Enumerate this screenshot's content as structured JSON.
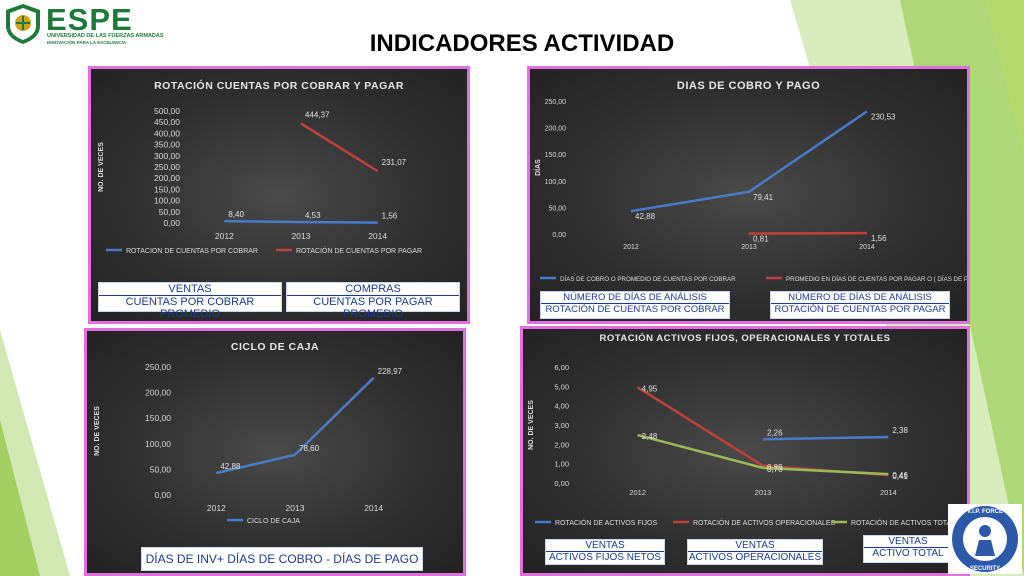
{
  "header": {
    "logo_name": "ESPE",
    "logo_sub1": "UNIVERSIDAD DE LAS FUERZAS ARMADAS",
    "logo_sub2": "INNOVACIÓN PARA LA EXCELENCIA",
    "title": "INDICADORES ACTIVIDAD"
  },
  "chart_data": [
    {
      "type": "line",
      "title": "ROTACIÓN CUENTAS POR COBRAR Y PAGAR",
      "ylabel": "NO. DE VECES",
      "xlabel": "",
      "categories": [
        "2012",
        "2013",
        "2014"
      ],
      "yticks": [
        "0,00",
        "50,00",
        "100,00",
        "150,00",
        "200,00",
        "250,00",
        "300,00",
        "350,00",
        "400,00",
        "450,00",
        "500,00"
      ],
      "ylim": [
        0,
        500
      ],
      "series": [
        {
          "name": "ROTACION DE CUENTAS POR COBRAR",
          "color": "#4a7bc8",
          "values": [
            8.4,
            4.53,
            1.56
          ],
          "labels": [
            "8,40",
            "4,53",
            "1,56"
          ]
        },
        {
          "name": "ROTACIÓN DE CUENTAS POR PAGAR",
          "color": "#c0403c",
          "values": [
            null,
            444.37,
            231.07
          ],
          "labels": [
            "",
            "444,37",
            "231,07"
          ]
        }
      ],
      "legend": "bottom",
      "grid": false
    },
    {
      "type": "line",
      "title": "DIAS DE COBRO Y PAGO",
      "ylabel": "DÍAS",
      "xlabel": "",
      "categories": [
        "2012",
        "2013",
        "2014"
      ],
      "yticks": [
        "0,00",
        "50,00",
        "100,00",
        "150,00",
        "200,00",
        "250,00"
      ],
      "ylim": [
        0,
        250
      ],
      "series": [
        {
          "name": "DÍAS DE COBRO O PROMEDIO DE CUENTAS POR COBRAR",
          "color": "#4a7bc8",
          "values": [
            42.88,
            79.41,
            230.53
          ],
          "labels": [
            "42,88",
            "79,41",
            "230,53"
          ]
        },
        {
          "name": "PROMEDIO EN DÍAS DE CUENTAS POR PAGAR O ( DÍAS DE PAGO )",
          "color": "#c0403c",
          "values": [
            null,
            0.81,
            1.56
          ],
          "labels": [
            "",
            "0,81",
            "1,56"
          ]
        }
      ],
      "legend": "bottom",
      "grid": false
    },
    {
      "type": "line",
      "title": "CICLO DE CAJA",
      "ylabel": "NO. DE VECES",
      "xlabel": "",
      "categories": [
        "2012",
        "2013",
        "2014"
      ],
      "yticks": [
        "0,00",
        "50,00",
        "100,00",
        "150,00",
        "200,00",
        "250,00"
      ],
      "ylim": [
        0,
        250
      ],
      "series": [
        {
          "name": "CICLO DE CAJA",
          "color": "#4a7bc8",
          "values": [
            42.88,
            78.6,
            228.97
          ],
          "labels": [
            "42,88",
            "78,60",
            "228,97"
          ]
        }
      ],
      "legend": "bottom",
      "grid": false
    },
    {
      "type": "line",
      "title": "ROTACIÓN ACTIVOS FIJOS, OPERACIONALES Y TOTALES",
      "ylabel": "NO. DE VECES",
      "xlabel": "",
      "categories": [
        "2012",
        "2013",
        "2014"
      ],
      "yticks": [
        "0,00",
        "1,00",
        "2,00",
        "3,00",
        "4,00",
        "5,00",
        "6,00"
      ],
      "ylim": [
        0,
        6
      ],
      "series": [
        {
          "name": "ROTACIÓN DE ACTIVOS FIJOS",
          "color": "#4a7bc8",
          "values": [
            null,
            2.26,
            2.38
          ],
          "labels": [
            "",
            "2,26",
            "2,38"
          ]
        },
        {
          "name": "ROTACIÓN DE ACTIVOS OPERACIONALES",
          "color": "#c0403c",
          "values": [
            4.95,
            0.89,
            0.41
          ],
          "labels": [
            "4,95",
            "0,89",
            "0,41"
          ]
        },
        {
          "name": "ROTACIÓN DE ACTIVOS TOTALES",
          "color": "#9bbb59",
          "values": [
            2.48,
            0.78,
            0.46
          ],
          "labels": [
            "2,48",
            "0,78",
            "0,46"
          ]
        }
      ],
      "legend": "bottom",
      "grid": false
    }
  ],
  "formulas": [
    {
      "num": "VENTAS",
      "den": "CUENTAS POR COBRAR PROMEDIO"
    },
    {
      "num": "COMPRAS",
      "den": "CUENTAS POR PAGAR PROMEDIO"
    },
    {
      "num": "NÚMERO DE DÍAS DE ANÁLISIS",
      "den": "ROTACIÓN DE CUENTAS POR COBRAR"
    },
    {
      "num": "NÚMERO DE DÍAS DE ANÁLISIS",
      "den": "ROTACIÓN DE CUENTAS POR PAGAR"
    },
    {
      "text": "DÍAS DE INV+ DÍAS DE COBRO - DÍAS DE PAGO"
    },
    {
      "num": "VENTAS",
      "den": "ACTIVOS FIJOS NETOS"
    },
    {
      "num": "VENTAS",
      "den": "ACTIVOS OPERACIONALES"
    },
    {
      "num": "VENTAS",
      "den": "ACTIVO TOTAL"
    }
  ],
  "badge": {
    "text": "V.I.P. FORCE SECURITY"
  },
  "colors": {
    "panel_border": "#e070e0",
    "accent_green": "#8dc63f",
    "formula_text": "#1a3c8c"
  }
}
